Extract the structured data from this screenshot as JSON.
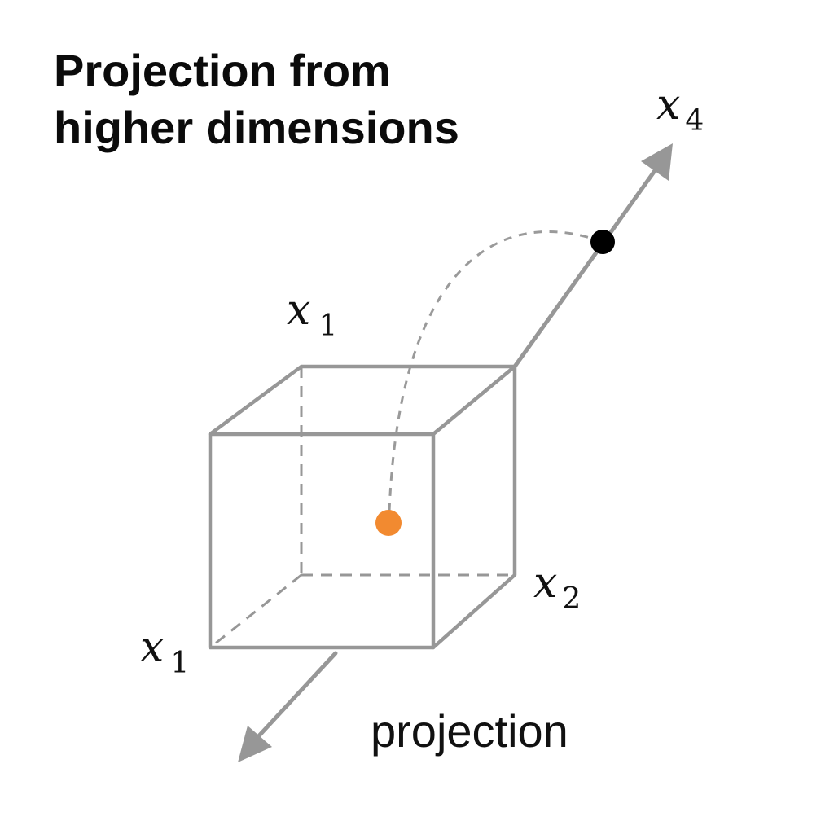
{
  "title": {
    "line1": "Projection from",
    "line2": "higher dimensions"
  },
  "labels": {
    "x4": {
      "var": "x",
      "sub": "4"
    },
    "x1_top": {
      "var": "x",
      "sub": "1"
    },
    "x1_bottom": {
      "var": "x",
      "sub": "1"
    },
    "x2": {
      "var": "x",
      "sub": "2"
    },
    "projection": "projection"
  },
  "colors": {
    "high_dim_point": "#000000",
    "projected_point": "#f28a30",
    "lines": "#979797"
  }
}
